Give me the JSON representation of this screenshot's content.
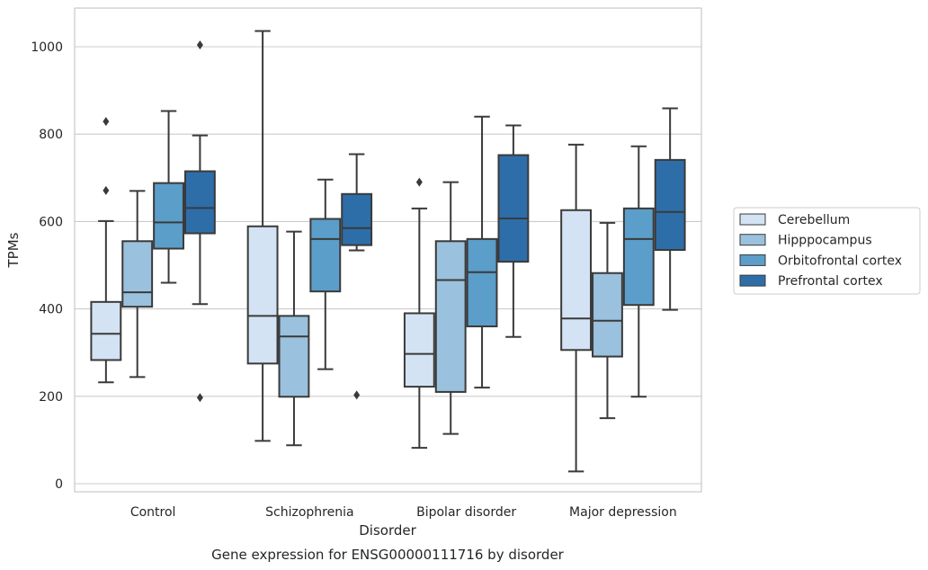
{
  "chart_data": {
    "type": "box",
    "xlabel": "Disorder",
    "ylabel": "TPMs",
    "caption": "Gene expression for ENSG00000111716 by disorder",
    "ylim": [
      -20,
      1090
    ],
    "yticks": [
      0,
      200,
      400,
      600,
      800,
      1000
    ],
    "grid": true,
    "legend_position": "right",
    "categories": [
      "Control",
      "Schizophrenia",
      "Bipolar disorder",
      "Major depression"
    ],
    "series": [
      {
        "name": "Cerebellum",
        "color": "#d3e3f3",
        "boxes": [
          {
            "whisker_low": 232,
            "q1": 283,
            "median": 343,
            "q3": 416,
            "whisker_high": 601,
            "outliers": [
              671,
              829
            ]
          },
          {
            "whisker_low": 98,
            "q1": 275,
            "median": 384,
            "q3": 589,
            "whisker_high": 1036,
            "outliers": []
          },
          {
            "whisker_low": 82,
            "q1": 222,
            "median": 297,
            "q3": 390,
            "whisker_high": 630,
            "outliers": [
              690
            ]
          },
          {
            "whisker_low": 28,
            "q1": 306,
            "median": 378,
            "q3": 626,
            "whisker_high": 776,
            "outliers": []
          }
        ]
      },
      {
        "name": "Hipppocampus",
        "color": "#9ac1dd",
        "boxes": [
          {
            "whisker_low": 244,
            "q1": 405,
            "median": 438,
            "q3": 555,
            "whisker_high": 670,
            "outliers": []
          },
          {
            "whisker_low": 88,
            "q1": 199,
            "median": 337,
            "q3": 384,
            "whisker_high": 577,
            "outliers": []
          },
          {
            "whisker_low": 114,
            "q1": 210,
            "median": 466,
            "q3": 555,
            "whisker_high": 690,
            "outliers": []
          },
          {
            "whisker_low": 150,
            "q1": 291,
            "median": 373,
            "q3": 482,
            "whisker_high": 597,
            "outliers": []
          }
        ]
      },
      {
        "name": "Orbitofrontal cortex",
        "color": "#5b9ec9",
        "boxes": [
          {
            "whisker_low": 460,
            "q1": 538,
            "median": 598,
            "q3": 688,
            "whisker_high": 853,
            "outliers": []
          },
          {
            "whisker_low": 262,
            "q1": 440,
            "median": 560,
            "q3": 606,
            "whisker_high": 696,
            "outliers": []
          },
          {
            "whisker_low": 220,
            "q1": 360,
            "median": 484,
            "q3": 560,
            "whisker_high": 840,
            "outliers": []
          },
          {
            "whisker_low": 199,
            "q1": 409,
            "median": 560,
            "q3": 630,
            "whisker_high": 772,
            "outliers": []
          }
        ]
      },
      {
        "name": "Prefrontal cortex",
        "color": "#2d6ea9",
        "boxes": [
          {
            "whisker_low": 411,
            "q1": 573,
            "median": 631,
            "q3": 715,
            "whisker_high": 797,
            "outliers": [
              197,
              1004
            ]
          },
          {
            "whisker_low": 534,
            "q1": 546,
            "median": 585,
            "q3": 663,
            "whisker_high": 754,
            "outliers": [
              203
            ]
          },
          {
            "whisker_low": 336,
            "q1": 508,
            "median": 607,
            "q3": 752,
            "whisker_high": 820,
            "outliers": []
          },
          {
            "whisker_low": 398,
            "q1": 535,
            "median": 622,
            "q3": 741,
            "whisker_high": 859,
            "outliers": []
          }
        ]
      }
    ]
  }
}
